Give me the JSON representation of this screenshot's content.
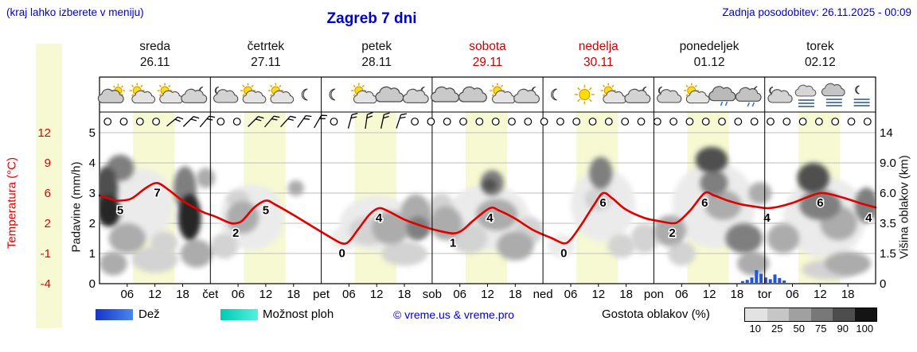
{
  "header": {
    "hint": "(kraj lahko izberete v meniju)",
    "title": "Zagreb 7 dni",
    "updated": "Zadnja posodobitev: 26.11.2025 - 00:09"
  },
  "colors": {
    "header_blue": "#0000cc",
    "weekend_red": "#cc0000",
    "temp_red": "#e00000",
    "daylight_band": "#f6f9d2",
    "rain_blue": "#2155dd",
    "grid_gray": "#bdbdbd",
    "rain_swatch_gradient": [
      "#1535c8",
      "#4a86ee"
    ],
    "showers_swatch_gradient": [
      "#00c9b4",
      "#52f2de"
    ]
  },
  "days": [
    {
      "name": "sreda",
      "date": "26.11",
      "weekend": false
    },
    {
      "name": "četrtek",
      "date": "27.11",
      "weekend": false
    },
    {
      "name": "petek",
      "date": "28.11",
      "weekend": false
    },
    {
      "name": "sobota",
      "date": "29.11",
      "weekend": true
    },
    {
      "name": "nedelja",
      "date": "30.11",
      "weekend": true
    },
    {
      "name": "ponedeljek",
      "date": "01.12",
      "weekend": false
    },
    {
      "name": "torek",
      "date": "02.12",
      "weekend": false
    }
  ],
  "axis": {
    "temp": {
      "label": "Temperatura (°C)",
      "ticks": [
        "12",
        "9",
        "6",
        "2",
        "-1",
        "-4"
      ]
    },
    "precip": {
      "label": "Padavine (mm/h)",
      "ticks": [
        "5",
        "4",
        "3",
        "2",
        "1",
        "0"
      ]
    },
    "cloudheight": {
      "label": "Višina oblakov (km)",
      "ticks": [
        "14",
        "9.0",
        "6.0",
        "3.5",
        "1.5",
        "0"
      ]
    }
  },
  "x_axis": {
    "hour_labels": [
      "06",
      "12",
      "18"
    ],
    "day_abbrs": [
      "čet",
      "pet",
      "sob",
      "ned",
      "pon",
      "tor"
    ]
  },
  "legend": {
    "rain_label": "Dež",
    "showers_label": "Možnost ploh",
    "copyright": "© vreme.us & vreme.pro",
    "cloud_density_label": "Gostota oblakov (%)",
    "density_steps": [
      "10",
      "25",
      "50",
      "75",
      "90",
      "100"
    ],
    "density_colors": [
      "#e3e3e3",
      "#c6c6c6",
      "#a0a0a0",
      "#787878",
      "#4d4d4d",
      "#141414"
    ]
  },
  "icon_row": [
    "cloud-sun",
    "sun-cloud",
    "sun-cloud",
    "cloud-moon",
    "moon-cloud",
    "sun-cloud",
    "sun-cloud",
    "moon",
    "moon",
    "sun-cloud",
    "cloud",
    "cloud-moon",
    "cloud",
    "cloud",
    "sun-cloud",
    "cloud-moon",
    "moon",
    "sun",
    "sun-cloud",
    "cloud-moon",
    "moon-cloud",
    "sun-cloud",
    "cloud-drizzle",
    "cloud-moon-drizzle",
    "moon-cloud",
    "fog",
    "cloud-fog",
    "moon-fog"
  ],
  "wind_row": [
    null,
    null,
    null,
    null,
    50,
    45,
    40,
    null,
    null,
    45,
    40,
    42,
    35,
    30,
    null,
    15,
    8,
    12,
    18,
    null,
    null,
    null,
    null,
    null,
    null,
    null,
    null,
    null,
    null,
    null,
    null,
    null,
    null,
    null,
    null,
    null,
    null,
    null,
    null,
    null,
    null,
    null,
    null,
    null,
    null,
    null,
    null,
    null
  ],
  "chart_data": {
    "type": "meteogram: temperature line + cloud-density area + precipitation bars",
    "title": "Zagreb 7 dni",
    "x_range_hours": [
      0,
      168
    ],
    "x_tick_hours": [
      6,
      12,
      18
    ],
    "daylight_bands_hours": {
      "start_hour": 7.25,
      "end_hour": 16.25,
      "repeats_each_day": true
    },
    "temperature": {
      "unit": "°C",
      "axis_ticks": [
        12,
        9,
        6,
        2,
        -1,
        -4
      ],
      "series": [
        [
          0,
          5.7
        ],
        [
          3,
          5.1
        ],
        [
          4.5,
          5
        ],
        [
          7,
          5.3
        ],
        [
          10,
          6.5
        ],
        [
          12.5,
          7
        ],
        [
          15,
          6.3
        ],
        [
          18,
          5
        ],
        [
          22,
          3.6
        ],
        [
          25,
          2.9
        ],
        [
          28,
          2.1
        ],
        [
          29.5,
          2
        ],
        [
          31,
          2.4
        ],
        [
          33.5,
          4.1
        ],
        [
          36,
          5
        ],
        [
          38,
          4.5
        ],
        [
          42,
          3.1
        ],
        [
          46,
          1.7
        ],
        [
          50,
          0.6
        ],
        [
          52.5,
          0
        ],
        [
          54,
          0.2
        ],
        [
          56,
          1.4
        ],
        [
          58.5,
          3.2
        ],
        [
          60.5,
          4
        ],
        [
          62.5,
          3.6
        ],
        [
          66,
          2.5
        ],
        [
          70,
          1.7
        ],
        [
          73,
          1.3
        ],
        [
          76.5,
          1
        ],
        [
          78.5,
          1.3
        ],
        [
          81,
          2.4
        ],
        [
          84.5,
          4
        ],
        [
          86.5,
          3.7
        ],
        [
          90,
          2.6
        ],
        [
          94,
          1.3
        ],
        [
          98,
          0.5
        ],
        [
          100.5,
          0
        ],
        [
          102,
          0.4
        ],
        [
          104.5,
          2
        ],
        [
          107,
          4.4
        ],
        [
          109,
          6
        ],
        [
          111,
          5.3
        ],
        [
          114,
          3.8
        ],
        [
          118,
          2.7
        ],
        [
          121,
          2.3
        ],
        [
          124,
          2
        ],
        [
          125.5,
          2.3
        ],
        [
          128,
          3.8
        ],
        [
          131,
          6
        ],
        [
          133,
          5.7
        ],
        [
          136,
          5
        ],
        [
          139,
          4.5
        ],
        [
          142,
          4.2
        ],
        [
          144.5,
          4
        ],
        [
          147,
          4.2
        ],
        [
          150,
          4.7
        ],
        [
          153,
          5.4
        ],
        [
          156,
          6
        ],
        [
          158.5,
          5.8
        ],
        [
          162,
          5.2
        ],
        [
          165,
          4.6
        ],
        [
          168,
          4.1
        ]
      ],
      "labels": [
        [
          4.5,
          5
        ],
        [
          12.5,
          7
        ],
        [
          29.5,
          2
        ],
        [
          36,
          5
        ],
        [
          52.5,
          0
        ],
        [
          60.5,
          4
        ],
        [
          76.5,
          1
        ],
        [
          84.5,
          4
        ],
        [
          100.5,
          0
        ],
        [
          109,
          6
        ],
        [
          124,
          2
        ],
        [
          131,
          6
        ],
        [
          144.5,
          4
        ],
        [
          156,
          6
        ],
        [
          166.5,
          4
        ]
      ]
    },
    "precipitation": {
      "unit": "mm/h",
      "axis_ticks": [
        5,
        4,
        3,
        2,
        1,
        0
      ],
      "bars": [
        [
          139.2,
          0.06
        ],
        [
          140.2,
          0.1
        ],
        [
          141.2,
          0.18
        ],
        [
          142.2,
          0.42
        ],
        [
          143.2,
          0.3
        ],
        [
          144.2,
          0.18
        ],
        [
          145.2,
          0.12
        ],
        [
          146.2,
          0.28
        ],
        [
          147.2,
          0.16
        ],
        [
          148.2,
          0.08
        ]
      ]
    },
    "cloud_cover": {
      "unit": "density % at height km",
      "height_axis_ticks_km": [
        14,
        9.0,
        6.0,
        3.5,
        1.5,
        0
      ],
      "density_levels_pct": [
        10,
        25,
        50,
        75,
        90,
        100
      ],
      "density_colors": {
        "10": "#ebebeb",
        "25": "#d3d3d3",
        "50": "#acacac",
        "75": "#7f7f7f",
        "90": "#4f4f4f",
        "100": "#262626"
      },
      "blob_format": "[hour_center, km_center, width_hours, height_km, density_pct]",
      "blobs": [
        [
          9,
          5,
          14,
          6,
          10
        ],
        [
          33,
          4,
          14,
          5,
          10
        ],
        [
          60,
          3.5,
          16,
          4,
          10
        ],
        [
          84,
          4,
          18,
          5,
          10
        ],
        [
          109,
          5,
          14,
          6,
          10
        ],
        [
          133,
          5,
          18,
          7,
          10
        ],
        [
          157,
          4,
          18,
          6,
          10
        ],
        [
          1.5,
          6.5,
          5,
          4,
          90
        ],
        [
          2,
          4.5,
          5,
          2.5,
          100
        ],
        [
          4.5,
          8.5,
          6,
          3,
          75
        ],
        [
          6,
          2.5,
          8,
          2,
          50
        ],
        [
          3,
          1,
          6,
          1.2,
          50
        ],
        [
          12,
          1.2,
          10,
          1.4,
          25
        ],
        [
          14,
          2.2,
          6,
          1.5,
          25
        ],
        [
          18.5,
          6.5,
          5,
          4,
          75
        ],
        [
          19.5,
          4,
          5,
          3.5,
          100
        ],
        [
          21,
          1.5,
          7,
          1.6,
          50
        ],
        [
          23,
          7.5,
          4,
          2,
          50
        ],
        [
          27,
          2,
          6,
          1.6,
          25
        ],
        [
          31,
          4,
          7,
          2.5,
          50
        ],
        [
          30,
          5.5,
          5,
          1.5,
          25
        ],
        [
          42.5,
          6.5,
          3.5,
          1.5,
          50
        ],
        [
          53,
          2.5,
          6,
          1.6,
          10
        ],
        [
          58,
          3,
          8,
          2,
          25
        ],
        [
          63,
          3.2,
          8,
          2.4,
          50
        ],
        [
          68.5,
          4,
          7,
          3.5,
          50
        ],
        [
          69,
          3.2,
          5,
          1.6,
          75
        ],
        [
          66,
          1.5,
          10,
          1.4,
          25
        ],
        [
          75,
          3.5,
          7,
          2.5,
          50
        ],
        [
          74,
          5,
          5,
          2,
          25
        ],
        [
          80,
          2.5,
          8,
          2,
          25
        ],
        [
          85,
          7,
          5,
          2.5,
          75
        ],
        [
          84.5,
          6.8,
          3,
          1.2,
          90
        ],
        [
          86,
          4.2,
          9,
          2.5,
          50
        ],
        [
          90,
          2,
          8,
          1.8,
          50
        ],
        [
          93,
          3,
          6,
          2,
          25
        ],
        [
          100,
          2,
          6,
          1.5,
          10
        ],
        [
          108.5,
          8,
          5,
          3.5,
          75
        ],
        [
          108,
          5.5,
          6,
          2,
          25
        ],
        [
          113,
          2,
          6,
          1.5,
          25
        ],
        [
          118,
          2.5,
          6,
          2,
          25
        ],
        [
          123.5,
          3,
          7,
          2.2,
          50
        ],
        [
          126,
          1.5,
          6,
          1.4,
          25
        ],
        [
          132.5,
          9.5,
          7,
          3.5,
          90
        ],
        [
          133,
          7,
          6,
          2.5,
          75
        ],
        [
          135,
          5,
          8,
          2.5,
          50
        ],
        [
          139.5,
          2.5,
          8,
          2,
          75
        ],
        [
          141.5,
          1,
          7,
          1.2,
          50
        ],
        [
          143,
          6,
          5,
          2,
          50
        ],
        [
          148,
          2.5,
          7,
          2,
          50
        ],
        [
          154.5,
          7.5,
          7,
          3,
          90
        ],
        [
          156,
          5,
          9,
          2.5,
          75
        ],
        [
          160,
          3.5,
          8,
          2.5,
          50
        ],
        [
          162,
          1,
          10,
          1.2,
          50
        ],
        [
          158,
          0.7,
          12,
          1,
          25
        ],
        [
          166,
          5,
          5,
          3,
          75
        ]
      ]
    }
  }
}
